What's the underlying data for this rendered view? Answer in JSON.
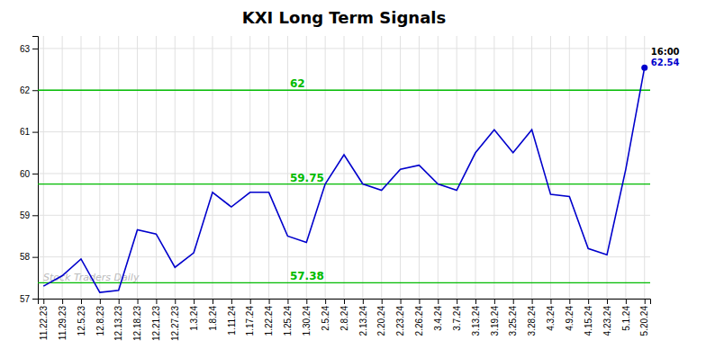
{
  "chart_data": {
    "type": "line",
    "title": "KXI Long Term Signals",
    "categories": [
      "11.22.23",
      "11.29.23",
      "12.5.23",
      "12.8.23",
      "12.13.23",
      "12.18.23",
      "12.21.23",
      "12.27.23",
      "1.3.24",
      "1.8.24",
      "1.11.24",
      "1.17.24",
      "1.22.24",
      "1.25.24",
      "1.30.24",
      "2.5.24",
      "2.8.24",
      "2.13.24",
      "2.20.24",
      "2.23.24",
      "2.26.24",
      "3.4.24",
      "3.7.24",
      "3.13.24",
      "3.19.24",
      "3.25.24",
      "3.28.24",
      "4.3.24",
      "4.9.24",
      "4.15.24",
      "4.23.24",
      "5.1.24",
      "5.20.24"
    ],
    "values": [
      57.3,
      57.55,
      57.95,
      57.15,
      57.2,
      58.65,
      58.55,
      57.75,
      58.1,
      59.55,
      59.2,
      59.55,
      59.55,
      58.5,
      58.35,
      59.75,
      60.45,
      59.75,
      59.6,
      60.1,
      60.2,
      59.75,
      59.6,
      60.5,
      61.05,
      60.5,
      61.05,
      59.5,
      59.45,
      58.2,
      58.05,
      60.1,
      62.54
    ],
    "color": "#0000cc",
    "hlines": [
      {
        "value": 62.0,
        "label": "62",
        "color": "#00bb00"
      },
      {
        "value": 59.75,
        "label": "59.75",
        "color": "#00bb00"
      },
      {
        "value": 57.38,
        "label": "57.38",
        "color": "#00bb00"
      }
    ],
    "last_point": {
      "time_label": "16:00",
      "value_label": "62.54"
    },
    "watermark": "Stock Traders Daily",
    "ylim": [
      57.0,
      63.3
    ],
    "yticks": [
      57,
      58,
      59,
      60,
      61,
      62,
      63
    ],
    "grid": true
  }
}
